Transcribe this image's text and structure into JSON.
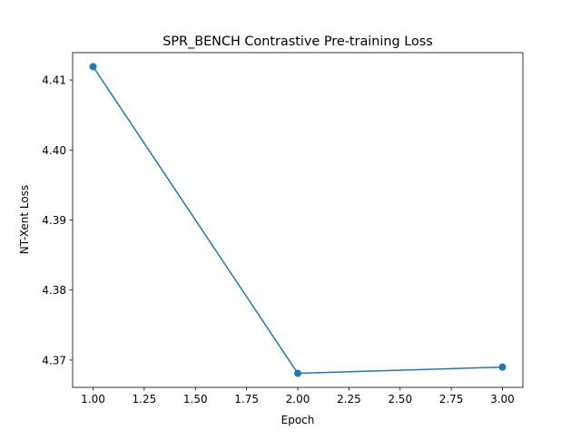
{
  "chart_data": {
    "type": "line",
    "title": "SPR_BENCH Contrastive Pre-training Loss",
    "xlabel": "Epoch",
    "ylabel": "NT-Xent Loss",
    "xlim": [
      0.9,
      3.1
    ],
    "ylim": [
      4.3661,
      4.4139
    ],
    "xticks": [
      1.0,
      1.25,
      1.5,
      1.75,
      2.0,
      2.25,
      2.5,
      2.75,
      3.0
    ],
    "xtick_labels": [
      "1.00",
      "1.25",
      "1.50",
      "1.75",
      "2.00",
      "2.25",
      "2.50",
      "2.75",
      "3.00"
    ],
    "yticks": [
      4.37,
      4.38,
      4.39,
      4.4,
      4.41
    ],
    "ytick_labels": [
      "4.37",
      "4.38",
      "4.39",
      "4.40",
      "4.41"
    ],
    "grid": false,
    "series": [
      {
        "x": [
          1,
          2,
          3
        ],
        "y": [
          4.4119,
          4.3681,
          4.369
        ],
        "color": "#1f77b4",
        "marker": "circle"
      }
    ]
  }
}
